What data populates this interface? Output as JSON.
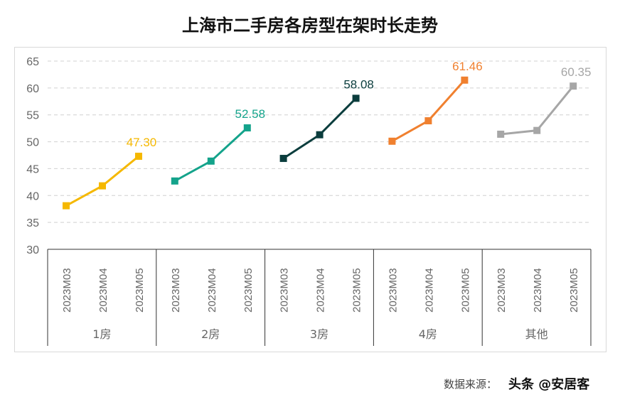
{
  "title": "上海市二手房各房型在架时长走势",
  "source_label": "数据来源：",
  "watermark": "头条 @安居客",
  "chart_data": {
    "type": "line",
    "title": "上海市二手房各房型在架时长走势",
    "ylim": [
      30,
      65
    ],
    "yticks": [
      30,
      35,
      40,
      45,
      50,
      55,
      60,
      65
    ],
    "grid": true,
    "groups": [
      "1房",
      "2房",
      "3房",
      "4房",
      "其他"
    ],
    "categories": [
      "2023M03",
      "2023M04",
      "2023M05"
    ],
    "series": [
      {
        "group": "1房",
        "values": [
          38.1,
          41.8,
          47.3
        ],
        "color": "#F5B800",
        "label": "47.30"
      },
      {
        "group": "2房",
        "values": [
          42.7,
          46.4,
          52.58
        ],
        "color": "#14A38B",
        "label": "52.58"
      },
      {
        "group": "3房",
        "values": [
          46.9,
          51.3,
          58.08
        ],
        "color": "#0B3D3D",
        "label": "58.08"
      },
      {
        "group": "4房",
        "values": [
          50.1,
          53.9,
          61.46
        ],
        "color": "#F0802F",
        "label": "61.46"
      },
      {
        "group": "其他",
        "values": [
          51.4,
          52.1,
          60.35
        ],
        "color": "#A6A6A6",
        "label": "60.35"
      }
    ]
  }
}
